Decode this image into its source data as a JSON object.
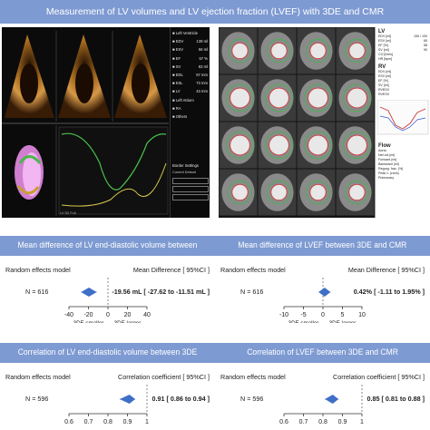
{
  "title": "Measurement of LV volumes  and LV ejection fraction (LVEF) with 3DE and CMR",
  "echo_panel": {
    "params": [
      "Left Ventricle",
      "EDV",
      "ESV",
      "EF",
      "SV",
      "EDL",
      "ESL",
      "LV",
      "Left Atrium",
      "RA",
      "Others"
    ],
    "values": [
      "",
      "139 ml",
      "56 ml",
      "57 %",
      "83 ml",
      "67 mm",
      "73 mm",
      "43 mm",
      "",
      "",
      ""
    ],
    "border_settings_title": "Border Settings",
    "border_settings": [
      "Current  Default"
    ],
    "footer": "LV 3D Full"
  },
  "cmr_panel": {
    "lv_label": "LV",
    "lv_rows": [
      "EDV [ml]",
      "ESV [ml]",
      "EF [%]",
      "SV [ml]",
      "CO [l/min]",
      "HR [bpm]"
    ],
    "lv_values": [
      "155 / 100",
      "65",
      "58",
      "90",
      "",
      ""
    ],
    "rv_label": "RV",
    "rv_rows": [
      "EDV [ml]",
      "ESV [ml]",
      "EF [%]",
      "SV [ml]",
      "RVEDV",
      "RVESV"
    ],
    "flow_label": "Flow",
    "flow_rows": [
      "Aorta",
      "Net vol.(ml)",
      "Forward (ml)",
      "Backward (ml)",
      "Regurg. frac. (%)",
      "Peak v. (cm/s)",
      "Pulmonary"
    ]
  },
  "sections": [
    {
      "title": "Mean difference of LV end-diastolic volume between 3DE and CMR",
      "model_label": "Random effects model",
      "n_label": "N = 616",
      "stat_header": "Mean Difference [ 95%CI ]",
      "stat_value": "-19.56 mL [ -27.62 to -11.51 mL ]",
      "ticks": [
        "-40",
        "-20",
        "0",
        "20",
        "40"
      ],
      "tick_values": [
        -40,
        -20,
        0,
        20,
        40
      ],
      "axis_range": [
        -40,
        40
      ],
      "estimate": -19.56,
      "ci": [
        -27.62,
        -11.51
      ],
      "reference": 0,
      "label_left": "3DE smaller",
      "label_right": "3DE larger"
    },
    {
      "title": "Mean difference of LVEF between 3DE and CMR",
      "model_label": "Random effects model",
      "n_label": "N = 616",
      "stat_header": "Mean Difference [ 95%CI ]",
      "stat_value": "0.42% [ -1.11 to 1.95% ]",
      "ticks": [
        "-10",
        "-5",
        "0",
        "5",
        "10"
      ],
      "tick_values": [
        -10,
        -5,
        0,
        5,
        10
      ],
      "axis_range": [
        -10,
        10
      ],
      "estimate": 0.42,
      "ci": [
        -1.11,
        1.95
      ],
      "reference": 0,
      "label_left": "3DE smaller",
      "label_right": "3DE larger"
    },
    {
      "title": "Correlation of LV end-diastolic volume between 3DE and CMR",
      "model_label": "Random effects model",
      "n_label": "N = 596",
      "stat_header": "Correlation coefficient [ 95%CI ]",
      "stat_value": "0.91 [ 0.86 to 0.94 ]",
      "ticks": [
        "0.6",
        "0.7",
        "0.8",
        "0.9",
        "1"
      ],
      "tick_values": [
        0.6,
        0.7,
        0.8,
        0.9,
        1.0
      ],
      "axis_range": [
        0.6,
        1.0
      ],
      "estimate": 0.91,
      "ci": [
        0.86,
        0.94
      ],
      "reference": 1.0,
      "label_left": "",
      "label_right": ""
    },
    {
      "title": "Correlation of LVEF between 3DE and CMR",
      "model_label": "Random effects model",
      "n_label": "N = 596",
      "stat_header": "Correlation coefficient [ 95%CI ]",
      "stat_value": "0.85 [ 0.81 to 0.88 ]",
      "ticks": [
        "0.6",
        "0.7",
        "0.8",
        "0.9",
        "1"
      ],
      "tick_values": [
        0.6,
        0.7,
        0.8,
        0.9,
        1.0
      ],
      "axis_range": [
        0.6,
        1.0
      ],
      "estimate": 0.85,
      "ci": [
        0.81,
        0.88
      ],
      "reference": 1.0,
      "label_left": "",
      "label_right": ""
    }
  ],
  "colors": {
    "band": "#7e9ad2",
    "diamond": "#3f6fc6",
    "echo_tissue": "#c98a2e",
    "curve_green": "#4cc24c",
    "curve_yellow": "#d8c84a"
  }
}
